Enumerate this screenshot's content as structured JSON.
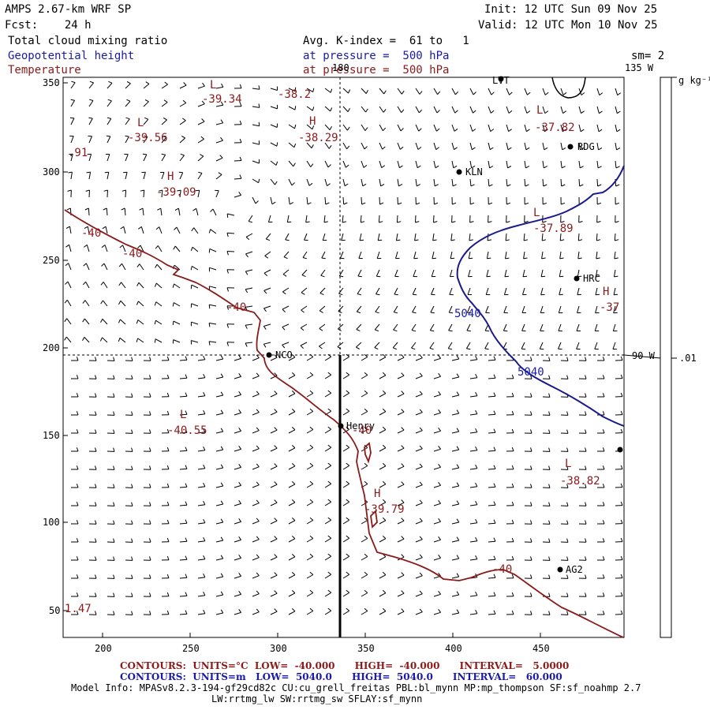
{
  "header": {
    "model": "AMPS 2.67-km WRF SP",
    "forecast": "Fcst:    24 h",
    "init": "Init: 12 UTC Sun 09 Nov 25",
    "valid": "Valid: 12 UTC Mon 10 Nov 25",
    "field1": "Total cloud mixing ratio",
    "field2": "Geopotential height",
    "field3": "Temperature",
    "avg": "Avg. K-index =  61 to   1",
    "pressure1": "at pressure =  500 hPa",
    "pressure2": "at pressure =  500 hPa",
    "sm": "sm= 2"
  },
  "colorbar": {
    "units": "g kg⁻¹",
    "value": ".01"
  },
  "map_labels": {
    "lon_180": "180",
    "lon_135": "135 W",
    "lon_90": "90 W"
  },
  "axes": {
    "x_ticks": [
      "200",
      "250",
      "300",
      "350",
      "400",
      "450"
    ],
    "y_ticks": [
      "350",
      "300",
      "250",
      "200",
      "150",
      "100",
      "50"
    ]
  },
  "stations": [
    {
      "name": "LVT"
    },
    {
      "name": "RDG"
    },
    {
      "name": "KLN"
    },
    {
      "name": "HRC"
    },
    {
      "name": "NCO"
    },
    {
      "name": "Henry"
    },
    {
      "name": "AG2"
    },
    {
      "name": ""
    }
  ],
  "temperature_labels": [
    {
      "kind": "L",
      "value": "-39.34"
    },
    {
      "kind": "",
      "value": "-38.2"
    },
    {
      "kind": "L",
      "value": "-39.56"
    },
    {
      "kind": "H",
      "value": "-38.29"
    },
    {
      "kind": "L",
      "value": "-37.82"
    },
    {
      "kind": "",
      "value": ".91"
    },
    {
      "kind": "H",
      "value": "-39.09"
    },
    {
      "kind": "L",
      "value": "-37.89"
    },
    {
      "kind": "H",
      "value": "-37"
    },
    {
      "kind": "L",
      "value": "-40.55"
    },
    {
      "kind": "L",
      "value": "-38.82"
    },
    {
      "kind": "H",
      "value": "-39.79"
    },
    {
      "kind": "",
      "value": "1.47"
    }
  ],
  "contour_labels": {
    "temp": [
      "-40",
      "-40",
      "-40",
      "-40",
      "-40"
    ],
    "height": [
      "5040",
      "5040"
    ]
  },
  "footer": {
    "temp_contours": "CONTOURS:  UNITS=°C  LOW=  -40.000      HIGH=  -40.000      INTERVAL=   5.0000",
    "height_contours": "CONTOURS:  UNITS=m   LOW=  5040.0      HIGH=  5040.0      INTERVAL=   60.000",
    "model_info": "Model Info: MPASv8.2.3-194-gf29cd82c CU:cu_grell_freitas PBL:bl_mynn MP:mp_thompson SF:sf_noahmp 2.7",
    "model_info2": "LW:rrtmg_lw SW:rrtmg_sw SFLAY:sf_mynn"
  },
  "colors": {
    "temperature": "#8b1a1a",
    "height": "#1a1aa6",
    "wind": "#000000"
  }
}
